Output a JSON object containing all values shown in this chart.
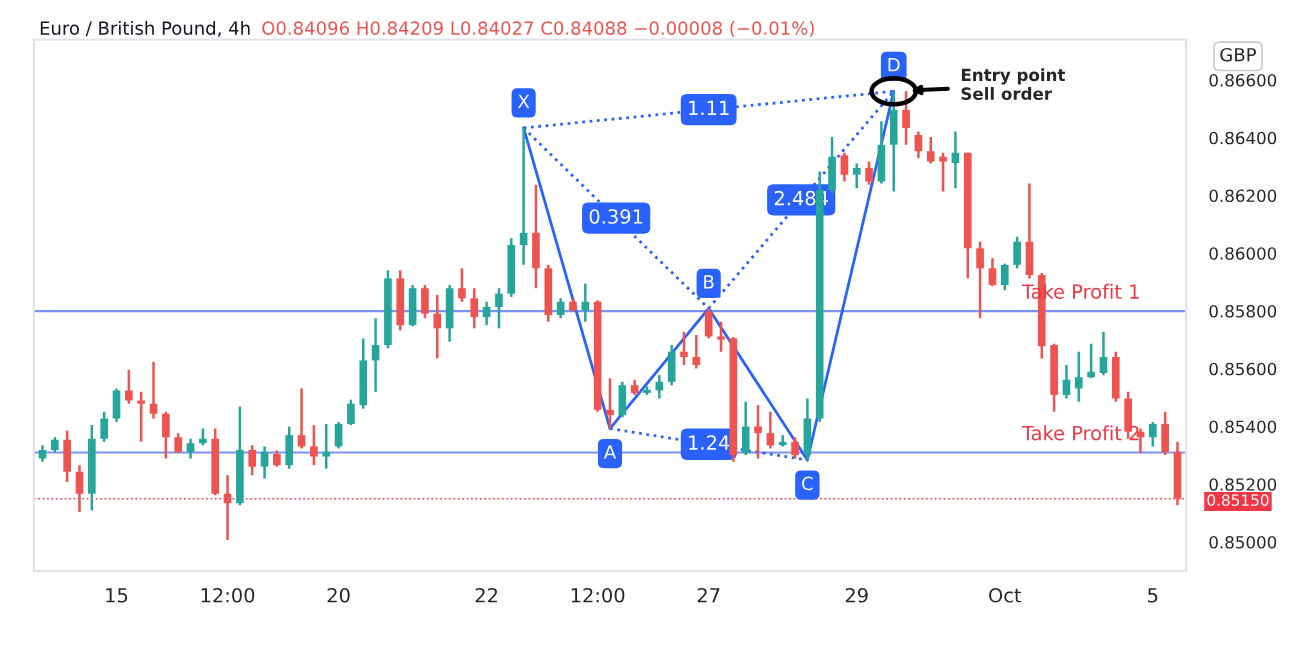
{
  "chart_data": {
    "type": "candlestick",
    "title": "Euro / British Pound, 4h",
    "subtitle": "O0.84096 H0.84209 L0.84027 C0.84088 −0.00008 (−0.01%)",
    "ylabel": "GBP",
    "categories": [
      null,
      null,
      null,
      null,
      null,
      null,
      "15",
      null,
      null,
      null,
      null,
      null,
      null,
      null,
      null,
      "12:00",
      null,
      null,
      null,
      null,
      null,
      null,
      null,
      null,
      "20",
      null,
      null,
      null,
      null,
      null,
      null,
      null,
      null,
      null,
      null,
      null,
      "22",
      null,
      null,
      null,
      null,
      null,
      null,
      null,
      null,
      "12:00",
      null,
      null,
      null,
      null,
      null,
      null,
      null,
      null,
      "27",
      null,
      null,
      null,
      null,
      null,
      null,
      null,
      null,
      null,
      null,
      null,
      "29",
      null,
      null,
      null,
      null,
      null,
      null,
      null,
      null,
      null,
      null,
      null,
      "Oct",
      null,
      null,
      null,
      null,
      null,
      null,
      null,
      null,
      null,
      null,
      null,
      "5",
      null,
      null
    ],
    "ohlc": [
      [
        0.85289,
        0.85335,
        0.85278,
        0.85319
      ],
      [
        0.85319,
        0.85363,
        0.85312,
        0.85354
      ],
      [
        0.85354,
        0.85386,
        0.85208,
        0.85243
      ],
      [
        0.85243,
        0.85266,
        0.85104,
        0.85167
      ],
      [
        0.85167,
        0.85405,
        0.85109,
        0.85358
      ],
      [
        0.85358,
        0.85451,
        0.85347,
        0.85428
      ],
      [
        0.85428,
        0.85532,
        0.85416,
        0.85525
      ],
      [
        0.85525,
        0.85597,
        0.85479,
        0.8549
      ],
      [
        0.8549,
        0.8552,
        0.85347,
        0.85479
      ],
      [
        0.85479,
        0.85624,
        0.85428,
        0.85444
      ],
      [
        0.85444,
        0.85451,
        0.85289,
        0.85363
      ],
      [
        0.85363,
        0.85377,
        0.85308,
        0.85312
      ],
      [
        0.85312,
        0.85358,
        0.85289,
        0.85342
      ],
      [
        0.85342,
        0.85393,
        0.85335,
        0.85358
      ],
      [
        0.85358,
        0.85393,
        0.85162,
        0.85167
      ],
      [
        0.85167,
        0.85231,
        0.85007,
        0.85134
      ],
      [
        0.85134,
        0.85469,
        0.85127,
        0.85319
      ],
      [
        0.85319,
        0.85335,
        0.85231,
        0.85261
      ],
      [
        0.85261,
        0.85331,
        0.8522,
        0.85312
      ],
      [
        0.85305,
        0.85317,
        0.85261,
        0.85266
      ],
      [
        0.85266,
        0.854,
        0.85254,
        0.8537
      ],
      [
        0.8537,
        0.85532,
        0.85324,
        0.85331
      ],
      [
        0.85331,
        0.85405,
        0.85266,
        0.85296
      ],
      [
        0.85296,
        0.85409,
        0.85254,
        0.85312
      ],
      [
        0.85331,
        0.85416,
        0.85324,
        0.85409
      ],
      [
        0.85409,
        0.85493,
        0.85405,
        0.85479
      ],
      [
        0.85474,
        0.85705,
        0.85462,
        0.85629
      ],
      [
        0.85629,
        0.85775,
        0.8552,
        0.85682
      ],
      [
        0.85682,
        0.85941,
        0.85671,
        0.85913
      ],
      [
        0.85913,
        0.85941,
        0.85733,
        0.85751
      ],
      [
        0.85751,
        0.8589,
        0.85747,
        0.85879
      ],
      [
        0.85879,
        0.8589,
        0.85775,
        0.85791
      ],
      [
        0.85791,
        0.85856,
        0.85636,
        0.8574
      ],
      [
        0.8574,
        0.8589,
        0.85694,
        0.85879
      ],
      [
        0.85879,
        0.85948,
        0.85832,
        0.85844
      ],
      [
        0.85844,
        0.85879,
        0.8574,
        0.85779
      ],
      [
        0.85779,
        0.85832,
        0.85751,
        0.85814
      ],
      [
        0.85814,
        0.85879,
        0.8574,
        0.8586
      ],
      [
        0.8586,
        0.86052,
        0.85849,
        0.86029
      ],
      [
        0.86029,
        0.86434,
        0.8596,
        0.86071
      ],
      [
        0.86071,
        0.86237,
        0.85879,
        0.85948
      ],
      [
        0.85948,
        0.8596,
        0.85763,
        0.85786
      ],
      [
        0.85786,
        0.85844,
        0.85775,
        0.85832
      ],
      [
        0.85832,
        0.85844,
        0.85798,
        0.85802
      ],
      [
        0.85802,
        0.85895,
        0.85763,
        0.85832
      ],
      [
        0.85832,
        0.85837,
        0.85451,
        0.85458
      ],
      [
        0.85458,
        0.85567,
        0.85393,
        0.85439
      ],
      [
        0.85439,
        0.85555,
        0.85432,
        0.85543
      ],
      [
        0.85543,
        0.85562,
        0.85509,
        0.85516
      ],
      [
        0.85516,
        0.85539,
        0.85509,
        0.85527
      ],
      [
        0.85525,
        0.85578,
        0.85497,
        0.85555
      ],
      [
        0.85555,
        0.85682,
        0.85543,
        0.85659
      ],
      [
        0.85659,
        0.85728,
        0.85613,
        0.85641
      ],
      [
        0.85641,
        0.85717,
        0.85601,
        0.85613
      ],
      [
        0.85798,
        0.85809,
        0.85705,
        0.85712
      ],
      [
        0.85712,
        0.85763,
        0.85659,
        0.85701
      ],
      [
        0.85705,
        0.8571,
        0.85278,
        0.85301
      ],
      [
        0.85308,
        0.85486,
        0.85301,
        0.854
      ],
      [
        0.854,
        0.85474,
        0.85289,
        0.85377
      ],
      [
        0.85377,
        0.85451,
        0.85324,
        0.85335
      ],
      [
        0.85335,
        0.8537,
        0.85331,
        0.85347
      ],
      [
        0.85347,
        0.85363,
        0.85289,
        0.85301
      ],
      [
        0.85301,
        0.85497,
        0.85284,
        0.85428
      ],
      [
        0.85428,
        0.86283,
        0.85416,
        0.86219
      ],
      [
        0.86219,
        0.86403,
        0.86209,
        0.86334
      ],
      [
        0.86339,
        0.86348,
        0.86249,
        0.86272
      ],
      [
        0.86272,
        0.86311,
        0.86225,
        0.86295
      ],
      [
        0.86295,
        0.86318,
        0.86237,
        0.86249
      ],
      [
        0.86249,
        0.86457,
        0.86242,
        0.86376
      ],
      [
        0.86376,
        0.86561,
        0.86214,
        0.86496
      ],
      [
        0.86496,
        0.86561,
        0.86376,
        0.86434
      ],
      [
        0.8641,
        0.86422,
        0.86329,
        0.86353
      ],
      [
        0.86353,
        0.86403,
        0.86311,
        0.86318
      ],
      [
        0.86334,
        0.86348,
        0.86214,
        0.86318
      ],
      [
        0.86313,
        0.86422,
        0.86225,
        0.86348
      ],
      [
        0.86348,
        0.86348,
        0.85913,
        0.86017
      ],
      [
        0.86017,
        0.8604,
        0.85775,
        0.85948
      ],
      [
        0.85948,
        0.85983,
        0.85886,
        0.8589
      ],
      [
        0.8589,
        0.85964,
        0.85872,
        0.8596
      ],
      [
        0.8596,
        0.86057,
        0.85948,
        0.8604
      ],
      [
        0.8604,
        0.86242,
        0.85913,
        0.85925
      ],
      [
        0.85925,
        0.85932,
        0.85636,
        0.85678
      ],
      [
        0.85682,
        0.85687,
        0.85451,
        0.85509
      ],
      [
        0.85509,
        0.85613,
        0.85497,
        0.85562
      ],
      [
        0.85532,
        0.85659,
        0.85486,
        0.85571
      ],
      [
        0.85571,
        0.85687,
        0.85567,
        0.8559
      ],
      [
        0.85585,
        0.85728,
        0.85578,
        0.85641
      ],
      [
        0.85641,
        0.85659,
        0.85486,
        0.85497
      ],
      [
        0.85497,
        0.8552,
        0.85358,
        0.85382
      ],
      [
        0.85382,
        0.85393,
        0.85308,
        0.85363
      ],
      [
        0.85363,
        0.85416,
        0.85331,
        0.85409
      ],
      [
        0.85409,
        0.85451,
        0.85301,
        0.85312
      ],
      [
        0.85312,
        0.85347,
        0.85127,
        0.8515
      ]
    ],
    "series": [
      {
        "type": "line",
        "color": "#2962ff",
        "line_style": "solid",
        "values": [
          null,
          null,
          null,
          null,
          null,
          null,
          null,
          null,
          null,
          null,
          null,
          null,
          null,
          null,
          null,
          null,
          null,
          null,
          null,
          null,
          null,
          null,
          null,
          null,
          null,
          null,
          null,
          null,
          null,
          null,
          null,
          null,
          null,
          null,
          null,
          null,
          null,
          null,
          null,
          0.86434,
          null,
          null,
          null,
          null,
          null,
          null,
          0.85393,
          null,
          null,
          null,
          null,
          null,
          null,
          null,
          0.85809,
          null,
          null,
          null,
          null,
          null,
          null,
          null,
          0.85284,
          null,
          null,
          null,
          null,
          null,
          null,
          0.86561,
          null,
          null,
          null,
          null,
          null,
          null,
          null,
          null,
          null,
          null,
          null,
          null,
          null,
          null,
          null,
          null,
          null,
          null,
          null,
          null,
          null,
          null,
          null
        ],
        "value_labels": [
          null,
          null,
          null,
          null,
          null,
          null,
          null,
          null,
          null,
          null,
          null,
          null,
          null,
          null,
          null,
          null,
          null,
          null,
          null,
          null,
          null,
          null,
          null,
          null,
          null,
          null,
          null,
          null,
          null,
          null,
          null,
          null,
          null,
          null,
          null,
          null,
          null,
          null,
          null,
          "X",
          null,
          null,
          null,
          null,
          null,
          null,
          "A",
          null,
          null,
          null,
          null,
          null,
          null,
          null,
          "B",
          null,
          null,
          null,
          null,
          null,
          null,
          null,
          "C",
          null,
          null,
          null,
          null,
          null,
          null,
          "D",
          null,
          null,
          null,
          null,
          null,
          null,
          null,
          null,
          null,
          null,
          null,
          null,
          null,
          null,
          null,
          null,
          null,
          null,
          null,
          null,
          null,
          null,
          null
        ]
      },
      {
        "type": "line",
        "name": "0.391",
        "color": "#2962ff",
        "line_style": "dotted",
        "values": [
          null,
          null,
          null,
          null,
          null,
          null,
          null,
          null,
          null,
          null,
          null,
          null,
          null,
          null,
          null,
          null,
          null,
          null,
          null,
          null,
          null,
          null,
          null,
          null,
          null,
          null,
          null,
          null,
          null,
          null,
          null,
          null,
          null,
          null,
          null,
          null,
          null,
          null,
          null,
          0.86434,
          null,
          null,
          null,
          null,
          null,
          null,
          null,
          null,
          null,
          null,
          null,
          null,
          null,
          null,
          0.85809,
          null,
          null,
          null,
          null,
          null,
          null,
          null,
          null,
          null,
          null,
          null,
          null,
          null,
          null,
          null,
          null,
          null,
          null,
          null,
          null,
          null,
          null,
          null,
          null,
          null,
          null,
          null,
          null,
          null,
          null,
          null,
          null,
          null,
          null,
          null,
          null,
          null,
          null
        ]
      },
      {
        "type": "line",
        "name": "1.24",
        "color": "#2962ff",
        "line_style": "dotted",
        "values": [
          null,
          null,
          null,
          null,
          null,
          null,
          null,
          null,
          null,
          null,
          null,
          null,
          null,
          null,
          null,
          null,
          null,
          null,
          null,
          null,
          null,
          null,
          null,
          null,
          null,
          null,
          null,
          null,
          null,
          null,
          null,
          null,
          null,
          null,
          null,
          null,
          null,
          null,
          null,
          null,
          null,
          null,
          null,
          null,
          null,
          null,
          0.85393,
          null,
          null,
          null,
          null,
          null,
          null,
          null,
          null,
          null,
          null,
          null,
          null,
          null,
          null,
          null,
          0.85284,
          null,
          null,
          null,
          null,
          null,
          null,
          null,
          null,
          null,
          null,
          null,
          null,
          null,
          null,
          null,
          null,
          null,
          null,
          null,
          null,
          null,
          null,
          null,
          null,
          null,
          null,
          null,
          null,
          null,
          null
        ]
      },
      {
        "type": "line",
        "name": "2.484",
        "color": "#2962ff",
        "line_style": "dotted",
        "values": [
          null,
          null,
          null,
          null,
          null,
          null,
          null,
          null,
          null,
          null,
          null,
          null,
          null,
          null,
          null,
          null,
          null,
          null,
          null,
          null,
          null,
          null,
          null,
          null,
          null,
          null,
          null,
          null,
          null,
          null,
          null,
          null,
          null,
          null,
          null,
          null,
          null,
          null,
          null,
          null,
          null,
          null,
          null,
          null,
          null,
          null,
          null,
          null,
          null,
          null,
          null,
          null,
          null,
          null,
          0.85809,
          null,
          null,
          null,
          null,
          null,
          null,
          null,
          null,
          null,
          null,
          null,
          null,
          null,
          null,
          0.86561,
          null,
          null,
          null,
          null,
          null,
          null,
          null,
          null,
          null,
          null,
          null,
          null,
          null,
          null,
          null,
          null,
          null,
          null,
          null,
          null,
          null,
          null,
          null
        ]
      },
      {
        "type": "line",
        "name": "1.11",
        "color": "#2962ff",
        "line_style": "dotted",
        "values": [
          null,
          null,
          null,
          null,
          null,
          null,
          null,
          null,
          null,
          null,
          null,
          null,
          null,
          null,
          null,
          null,
          null,
          null,
          null,
          null,
          null,
          null,
          null,
          null,
          null,
          null,
          null,
          null,
          null,
          null,
          null,
          null,
          null,
          null,
          null,
          null,
          null,
          null,
          null,
          0.86434,
          null,
          null,
          null,
          null,
          null,
          null,
          null,
          null,
          null,
          null,
          null,
          null,
          null,
          null,
          null,
          null,
          null,
          null,
          null,
          null,
          null,
          null,
          null,
          null,
          null,
          null,
          null,
          null,
          null,
          0.86561,
          null,
          null,
          null,
          null,
          null,
          null,
          null,
          null,
          null,
          null,
          null,
          null,
          null,
          null,
          null,
          null,
          null,
          null,
          null,
          null,
          null,
          null,
          null
        ]
      }
    ],
    "ref_lines": [
      {
        "axis": "y",
        "value": 0.858,
        "label": "Take Profit 1",
        "color": "#7b93f5",
        "line_style": "solid"
      },
      {
        "axis": "y",
        "value": 0.8531,
        "label": "Take Profit 2",
        "color": "#7b93f5",
        "line_style": "solid"
      },
      {
        "axis": "y",
        "value": 0.8515,
        "label": "0.85150",
        "color": "#f23645",
        "line_style": "dotted"
      }
    ],
    "annotations": [
      "Entry point\nSell order"
    ],
    "ylim": [
      0.849,
      0.8674
    ],
    "yticks": [
      {
        "value": 0.85,
        "label": "0.85000"
      },
      {
        "value": 0.852,
        "label": "0.85200"
      },
      {
        "value": 0.854,
        "label": "0.85400"
      },
      {
        "value": 0.856,
        "label": "0.85600"
      },
      {
        "value": 0.858,
        "label": "0.85800"
      },
      {
        "value": 0.86,
        "label": "0.86000"
      },
      {
        "value": 0.862,
        "label": "0.86200"
      },
      {
        "value": 0.864,
        "label": "0.86400"
      },
      {
        "value": 0.866,
        "label": "0.86600"
      }
    ],
    "grid": false,
    "legend": false
  }
}
